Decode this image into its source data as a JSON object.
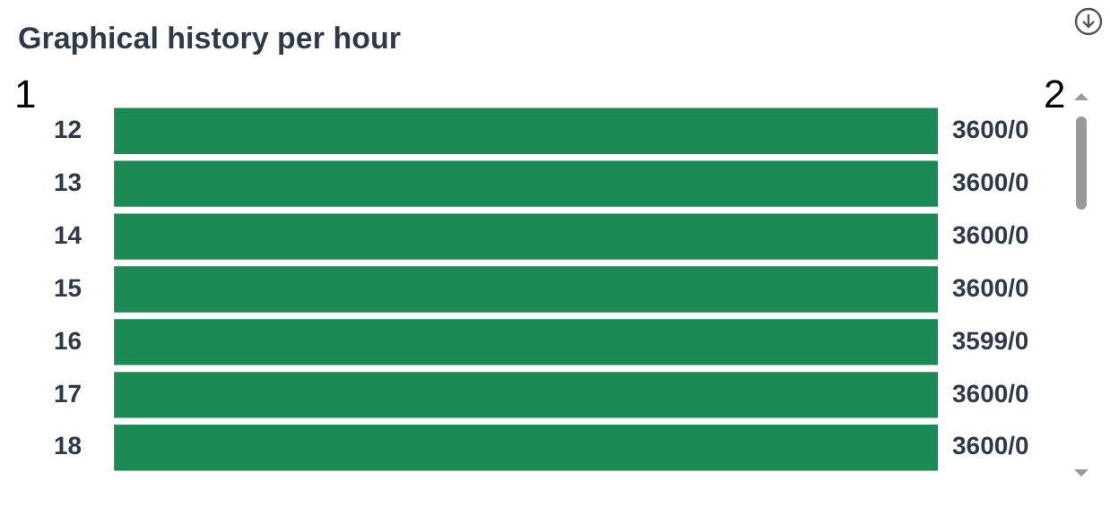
{
  "chart_data": {
    "type": "bar",
    "orientation": "horizontal",
    "title": "Graphical history per hour",
    "categories": [
      "12",
      "13",
      "14",
      "15",
      "16",
      "17",
      "18"
    ],
    "values": [
      3600,
      3600,
      3600,
      3600,
      3599,
      3600,
      3600
    ],
    "value_labels": [
      "3600/0",
      "3600/0",
      "3600/0",
      "3600/0",
      "3599/0",
      "3600/0",
      "3600/0"
    ],
    "color": "#1b8a55",
    "legend": false,
    "annotations": [
      "1",
      "2"
    ]
  }
}
